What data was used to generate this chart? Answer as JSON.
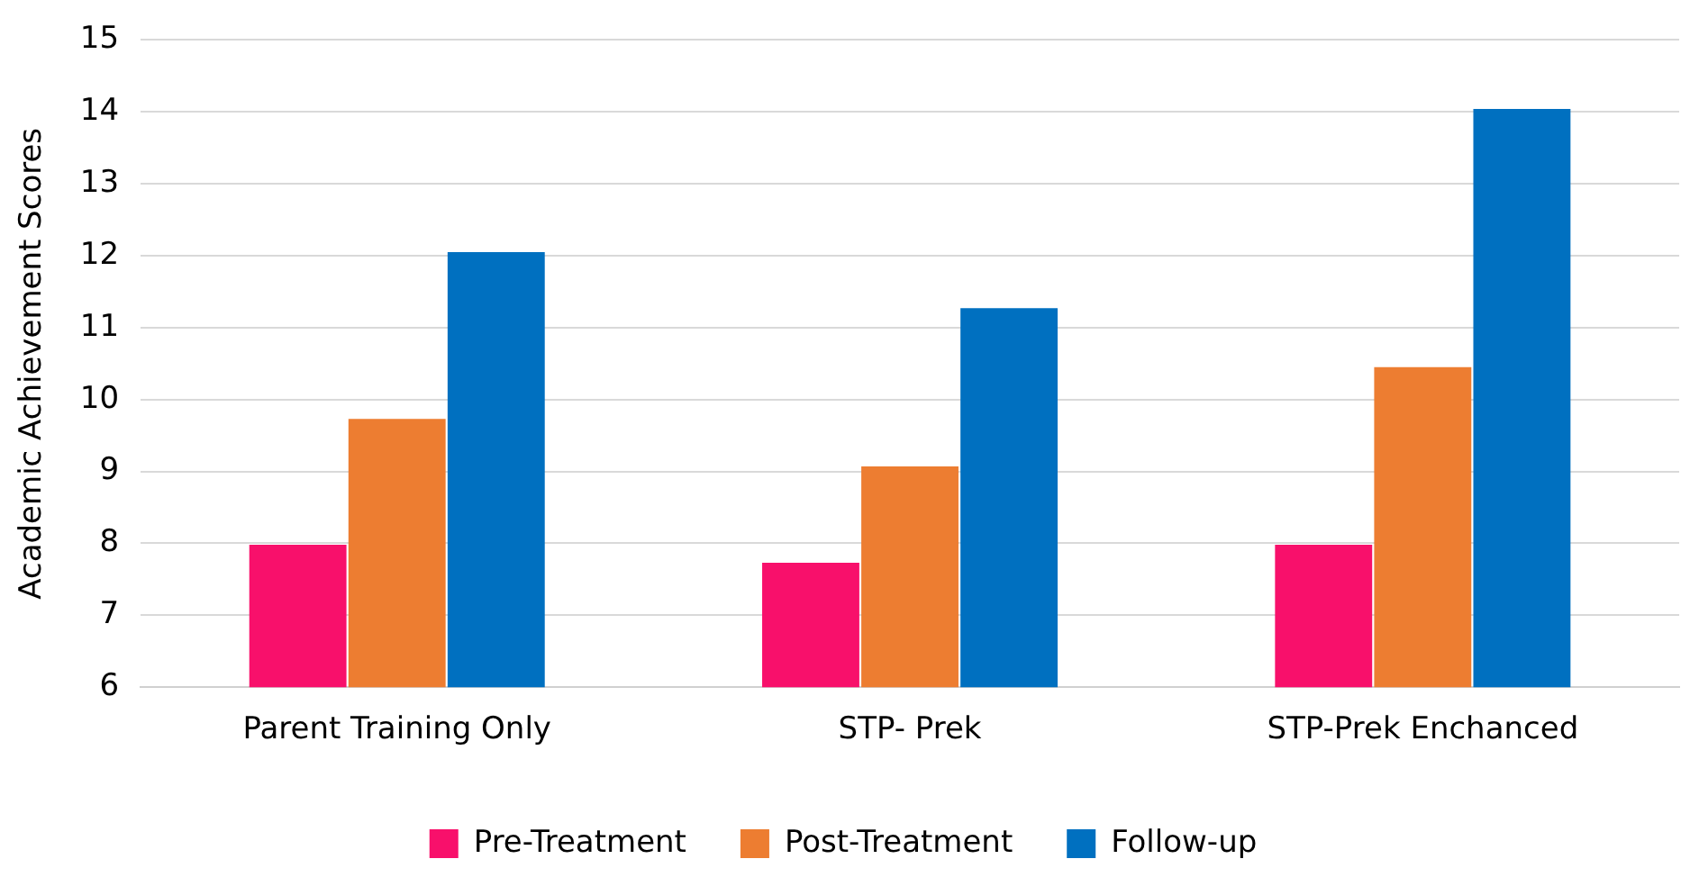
{
  "chart_data": {
    "type": "bar",
    "ylabel": "Academic Achievement Scores",
    "categories": [
      "Parent Training Only",
      "STP- Prek",
      "STP-Prek Enchanced"
    ],
    "series": [
      {
        "name": "Pre-Treatment",
        "color": "#f8106b",
        "values": [
          7.98,
          7.73,
          7.98
        ]
      },
      {
        "name": "Post-Treatment",
        "color": "#ed7d31",
        "values": [
          9.73,
          9.07,
          10.45
        ]
      },
      {
        "name": "Follow-up",
        "color": "#0070c0",
        "values": [
          12.05,
          11.27,
          14.04
        ]
      }
    ],
    "ylim": [
      6,
      15
    ],
    "yticks": [
      6,
      7,
      8,
      9,
      10,
      11,
      12,
      13,
      14,
      15
    ],
    "grid": "y",
    "legend": "bottom"
  }
}
